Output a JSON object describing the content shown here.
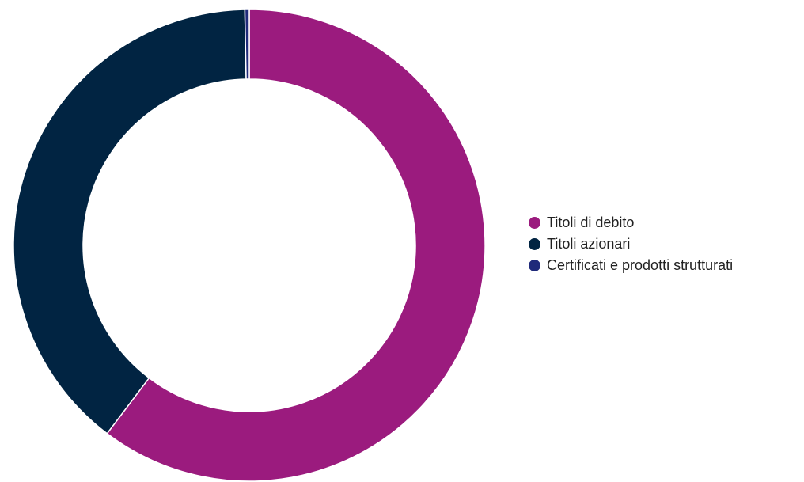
{
  "chart_data": {
    "type": "pie",
    "variant": "donut",
    "title": "",
    "legend_position": "right",
    "series": [
      {
        "name": "Titoli di debito",
        "value": 60.3,
        "color": "#9B1B7E"
      },
      {
        "name": "Titoli azionari",
        "value": 39.4,
        "color": "#012442"
      },
      {
        "name": "Certificati e prodotti strutturati",
        "value": 0.3,
        "color": "#1F2A7A"
      }
    ]
  }
}
